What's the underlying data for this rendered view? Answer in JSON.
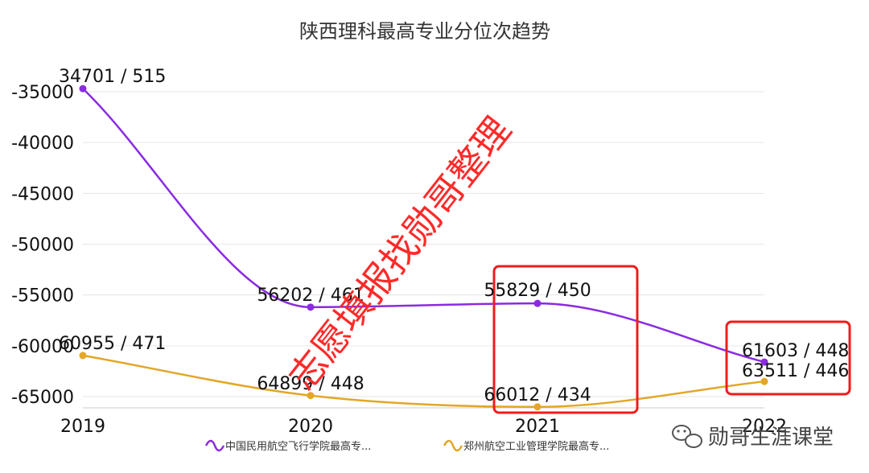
{
  "chart_data": {
    "type": "line",
    "title": "陕西理科最高专业分位次趋势",
    "categories": [
      "2019",
      "2020",
      "2021",
      "2022"
    ],
    "yticks": [
      "-35000",
      "-40000",
      "-45000",
      "-50000",
      "-55000",
      "-60000",
      "-65000"
    ],
    "ytick_values": [
      -35000,
      -40000,
      -45000,
      -50000,
      -55000,
      -60000,
      -65000
    ],
    "ylim": [
      -66500,
      -33000
    ],
    "grid": true,
    "legend_position": "bottom",
    "series": [
      {
        "name": "中国民用航空飞行学院最高专...",
        "color": "#8a2be2",
        "values": [
          -34701,
          -56202,
          -55829,
          -61603
        ],
        "labels": [
          "34701 / 515",
          "56202 / 461",
          "55829 / 450",
          "61603 / 448"
        ]
      },
      {
        "name": "郑州航空工业管理学院最高专...",
        "color": "#e3a626",
        "values": [
          -60955,
          -64899,
          -66012,
          -63511
        ],
        "labels": [
          "60955 / 471",
          "64899 / 448",
          "66012 / 434",
          "63511 / 446"
        ]
      }
    ],
    "highlight_boxes": [
      "2021",
      "2022"
    ],
    "highlight_color": "#ee1c1c",
    "watermark": "志愿填报找勋哥整理"
  },
  "brand": {
    "name": "勋哥生涯课堂",
    "icon": "wechat-icon"
  }
}
